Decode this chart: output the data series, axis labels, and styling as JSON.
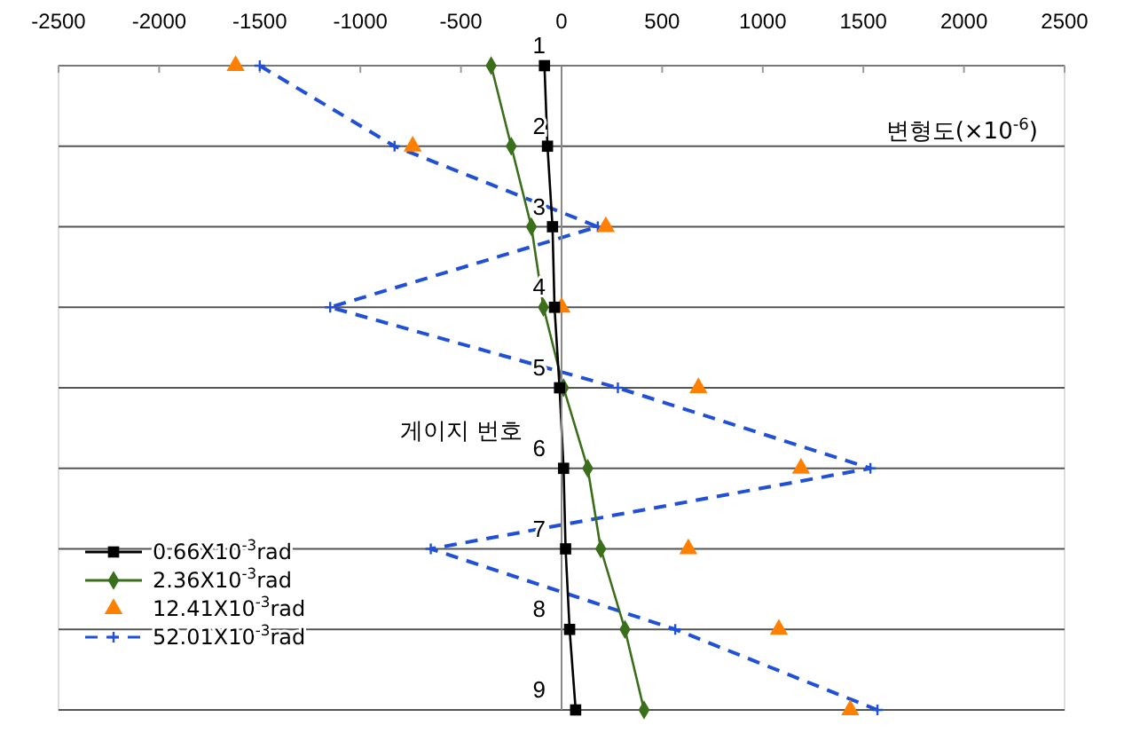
{
  "chart_data": {
    "type": "line",
    "xlabel": "변형도(×10$^{-6}$)",
    "ylabel": "게이지 번호",
    "xlim": [
      -2500,
      2500
    ],
    "xticks": [
      -2500,
      -2000,
      -1500,
      -1000,
      -500,
      0,
      500,
      1000,
      1500,
      2000,
      2500
    ],
    "ylim": [
      9,
      1
    ],
    "yticks": [
      1,
      2,
      3,
      4,
      5,
      6,
      7,
      8,
      9
    ],
    "grid": "y",
    "legend": "bottom left",
    "series": [
      {
        "name": "0.66X10$^{-3}$rad",
        "color": "#000000",
        "marker": "square",
        "line_style": "solid",
        "x": [
          -85,
          -70,
          -45,
          -35,
          -10,
          10,
          20,
          40,
          70
        ],
        "values": [
          1,
          2,
          3,
          4,
          5,
          6,
          7,
          8,
          9
        ]
      },
      {
        "name": "2.36X10$^{-3}$rad",
        "color": "#3a6e1a",
        "marker": "diamond",
        "line_style": "solid",
        "x": [
          -350,
          -250,
          -150,
          -90,
          10,
          130,
          195,
          315,
          410
        ],
        "values": [
          1,
          2,
          3,
          4,
          5,
          6,
          7,
          8,
          9
        ]
      },
      {
        "name": "12.41X10$^{-3}$rad",
        "type": "scatter",
        "color": "#ff7f00",
        "marker": "triangle",
        "x": [
          -1620,
          -740,
          220,
          0,
          680,
          1190,
          630,
          1080,
          1435
        ],
        "values": [
          1,
          2,
          3,
          4,
          5,
          6,
          7,
          8,
          9
        ]
      },
      {
        "name": "52.01X10$^{-3}$rad",
        "color": "#2050d8",
        "marker": "cross",
        "line_style": "dashed",
        "x": [
          -1500,
          -830,
          180,
          -1150,
          280,
          1535,
          -650,
          565,
          1570
        ],
        "values": [
          1,
          2,
          3,
          4,
          5,
          6,
          7,
          8,
          9
        ]
      }
    ]
  }
}
